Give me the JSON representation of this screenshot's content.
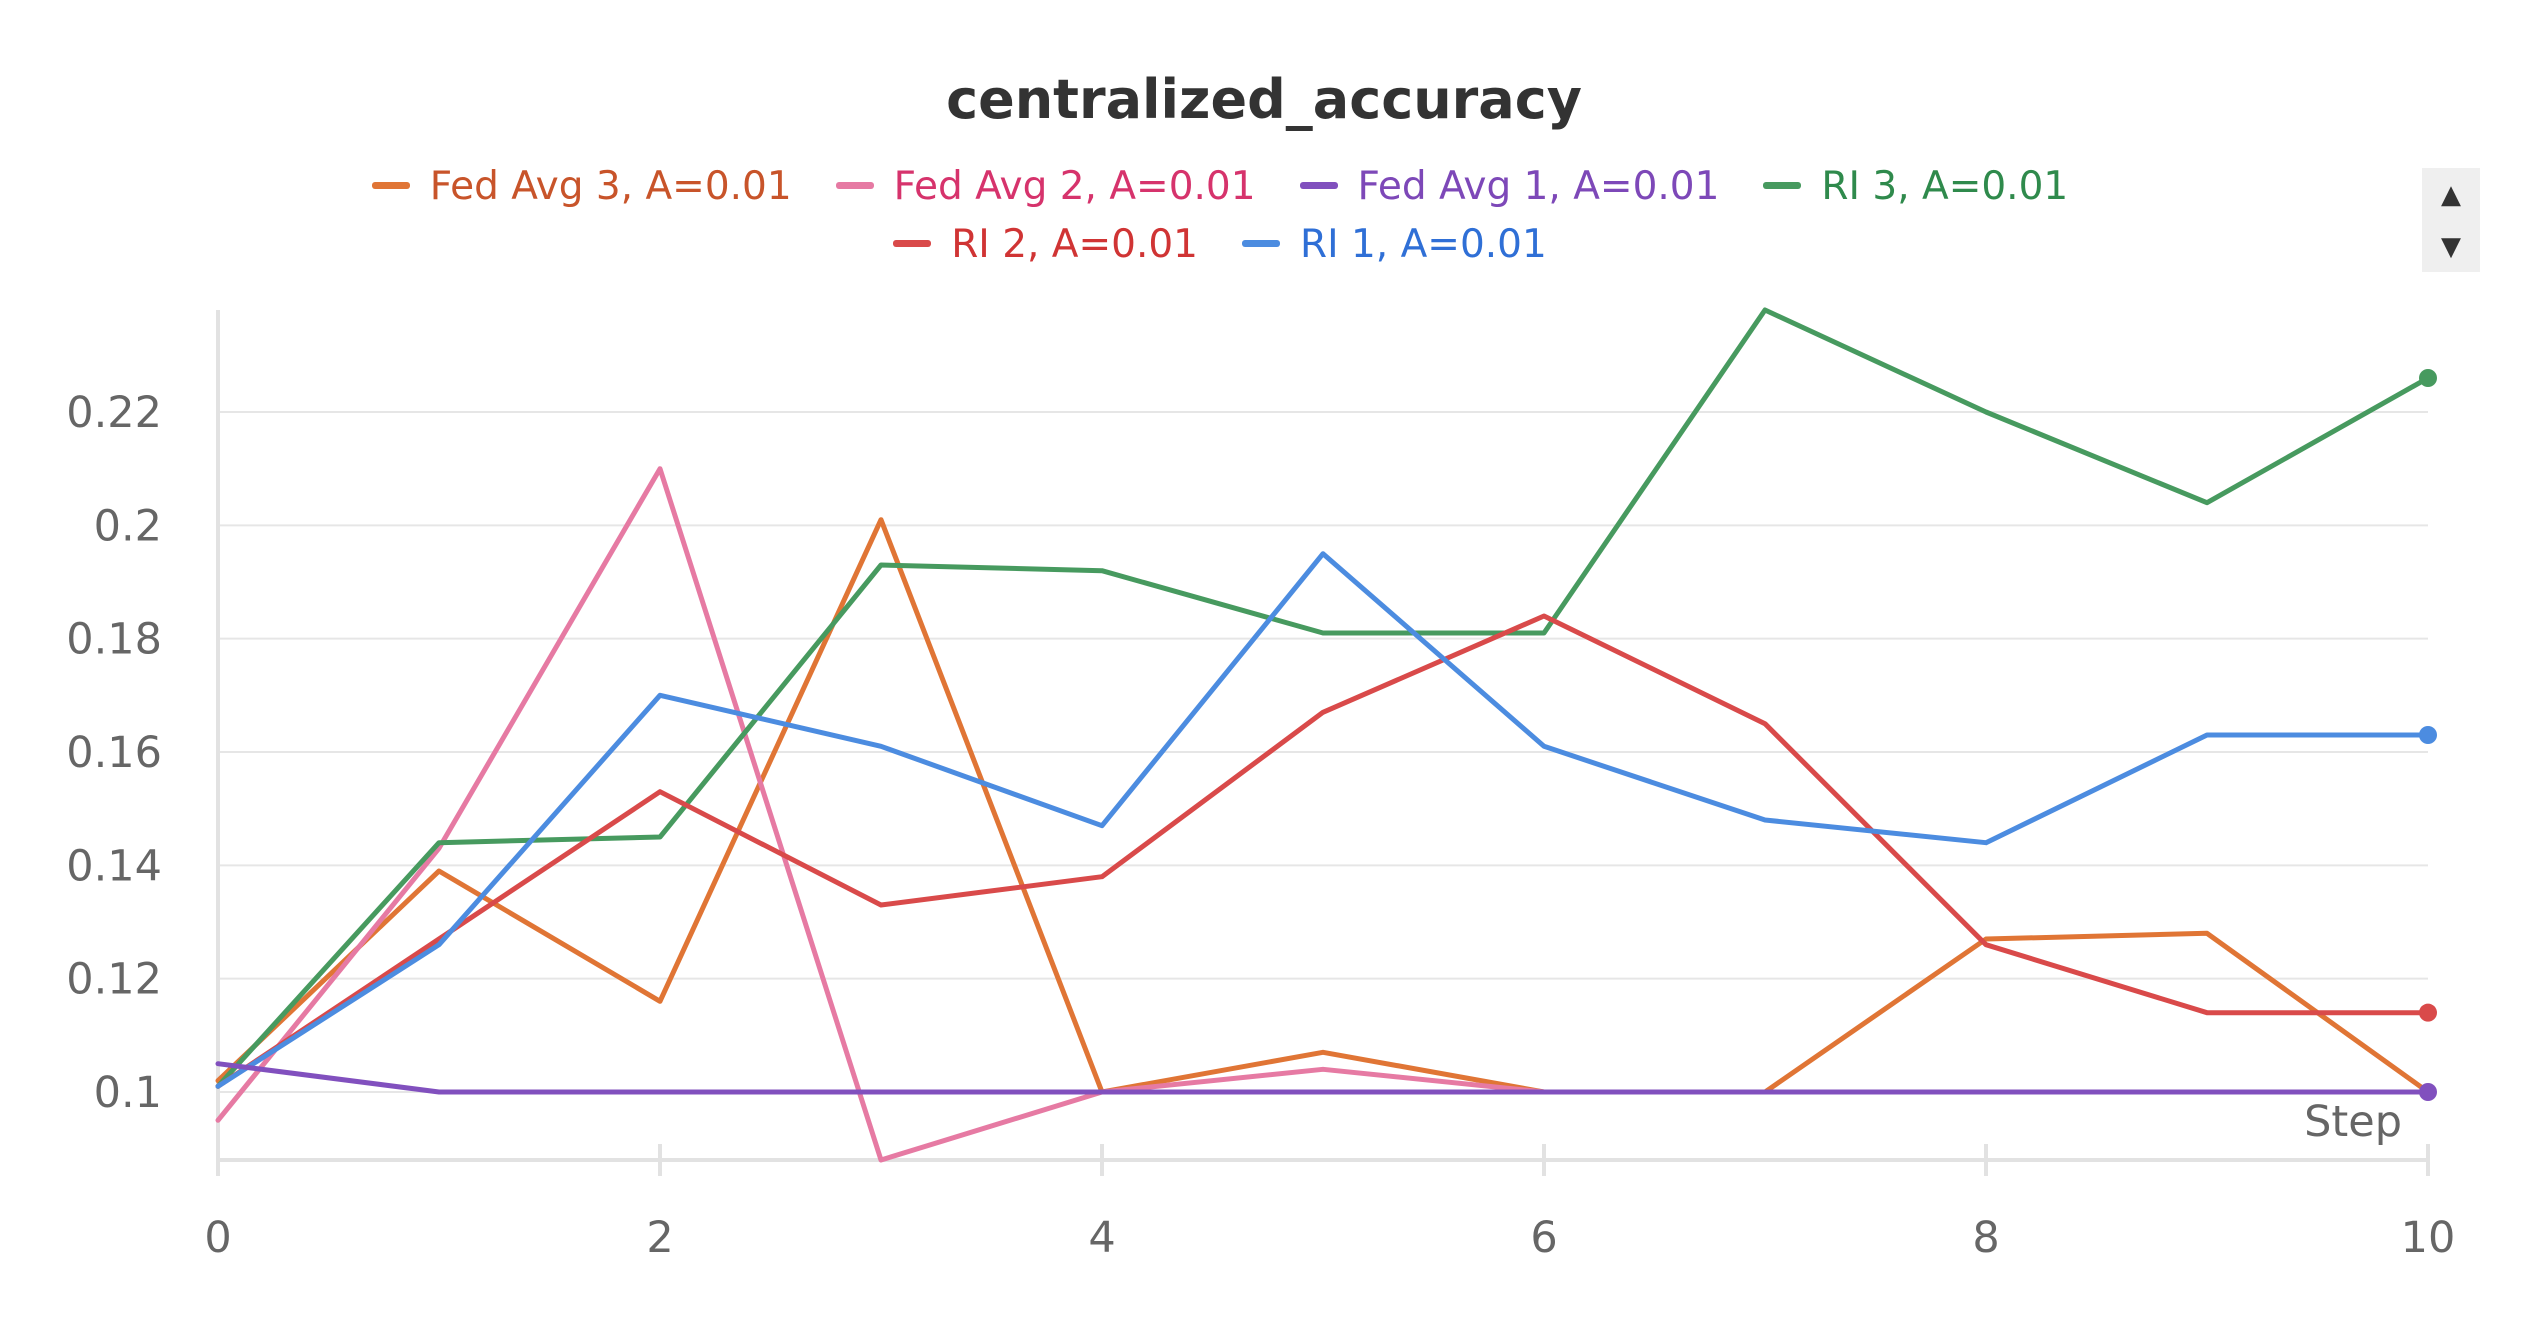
{
  "chart_data": {
    "type": "line",
    "title": "centralized_accuracy",
    "xlabel": "Step",
    "ylabel": "",
    "xlim": [
      0,
      10
    ],
    "ylim": [
      0.088,
      0.238
    ],
    "x_ticks": [
      0,
      2,
      4,
      6,
      8,
      10
    ],
    "y_ticks": [
      0.1,
      0.12,
      0.14,
      0.16,
      0.18,
      0.2,
      0.22
    ],
    "y_tick_labels": [
      "0.1",
      "0.12",
      "0.14",
      "0.16",
      "0.18",
      "0.2",
      "0.22"
    ],
    "grid": true,
    "legend_position": "top",
    "x": [
      0,
      1,
      2,
      3,
      4,
      5,
      6,
      7,
      8,
      9,
      10
    ],
    "series": [
      {
        "name": "Fed Avg 3, A=0.01",
        "color": "#e07535",
        "text_color": "#c8542a",
        "end_marker": false,
        "values": [
          0.102,
          0.139,
          0.116,
          0.201,
          0.1,
          0.107,
          0.1,
          0.1,
          0.127,
          0.128,
          0.1
        ]
      },
      {
        "name": "Fed Avg 2, A=0.01",
        "color": "#e67aa3",
        "text_color": "#d6336c",
        "end_marker": false,
        "values": [
          0.095,
          0.143,
          0.21,
          0.088,
          0.1,
          0.104,
          0.1,
          0.1,
          0.1,
          0.1,
          0.1
        ]
      },
      {
        "name": "RI 3, A=0.01",
        "color": "#479a5f",
        "text_color": "#2f8a4c",
        "end_marker": true,
        "values": [
          0.101,
          0.144,
          0.145,
          0.193,
          0.192,
          0.181,
          0.181,
          0.238,
          0.22,
          0.204,
          0.226
        ]
      },
      {
        "name": "RI 2, A=0.01",
        "color": "#d94a4a",
        "text_color": "#d03434",
        "end_marker": true,
        "values": [
          0.101,
          0.127,
          0.153,
          0.133,
          0.138,
          0.167,
          0.184,
          0.165,
          0.126,
          0.114,
          0.114
        ]
      },
      {
        "name": "RI 1, A=0.01",
        "color": "#4c8ce0",
        "text_color": "#2f6fd6",
        "end_marker": true,
        "values": [
          0.101,
          0.126,
          0.17,
          0.161,
          0.147,
          0.195,
          0.161,
          0.148,
          0.144,
          0.163,
          0.163
        ]
      },
      {
        "name": "Fed Avg 1, A=0.01",
        "color": "#8150be",
        "text_color": "#7d48b8",
        "end_marker": true,
        "values": [
          0.105,
          0.1,
          0.1,
          0.1,
          0.1,
          0.1,
          0.1,
          0.1,
          0.1,
          0.1,
          0.1
        ]
      }
    ],
    "legend_order": [
      0,
      1,
      5,
      2,
      3,
      4
    ]
  },
  "legend_controls": {
    "scroll_up_icon": "triangle-up-icon",
    "scroll_down_icon": "triangle-down-icon",
    "scroll_up_glyph": "▲",
    "scroll_down_glyph": "▼"
  }
}
